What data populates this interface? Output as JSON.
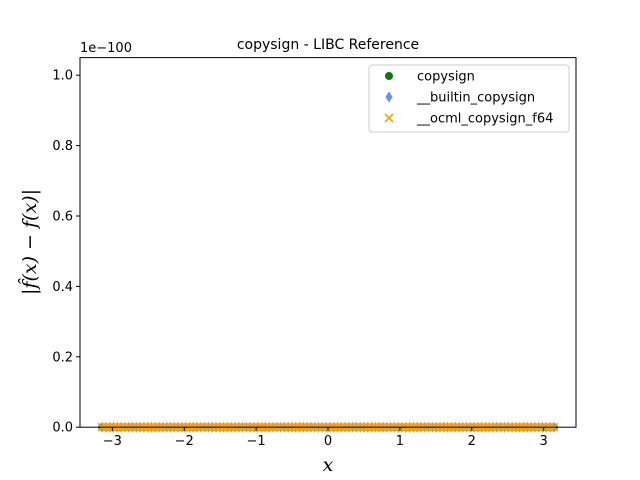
{
  "chart_data": {
    "type": "scatter",
    "title": "copysign - LIBC Reference",
    "xlabel": "x",
    "ylabel": "|f̂(x) − f(x)|",
    "offset_text": "1e−100",
    "xlim": [
      -3.45,
      3.45
    ],
    "ylim": [
      0,
      1.05
    ],
    "x_ticks": [
      -3,
      -2,
      -1,
      0,
      1,
      2,
      3
    ],
    "x_tick_labels": [
      "−3",
      "−2",
      "−1",
      "0",
      "1",
      "2",
      "3"
    ],
    "y_ticks": [
      0.0,
      0.2,
      0.4,
      0.6,
      0.8,
      1.0
    ],
    "y_tick_labels": [
      "0.0",
      "0.2",
      "0.4",
      "0.6",
      "0.8",
      "1.0"
    ],
    "legend_position": "top-right",
    "x_range": [
      -3.14159,
      3.14159
    ],
    "sample_count": 120,
    "series": [
      {
        "name": "copysign",
        "marker": "circle",
        "color": "#008000",
        "y": 0
      },
      {
        "name": "__builtin_copysign",
        "marker": "thin-diamond",
        "color": "#6495ed",
        "y": 0
      },
      {
        "name": "__ocml_copysign_f64",
        "marker": "x",
        "color": "#ffa500",
        "y": 0
      }
    ]
  }
}
